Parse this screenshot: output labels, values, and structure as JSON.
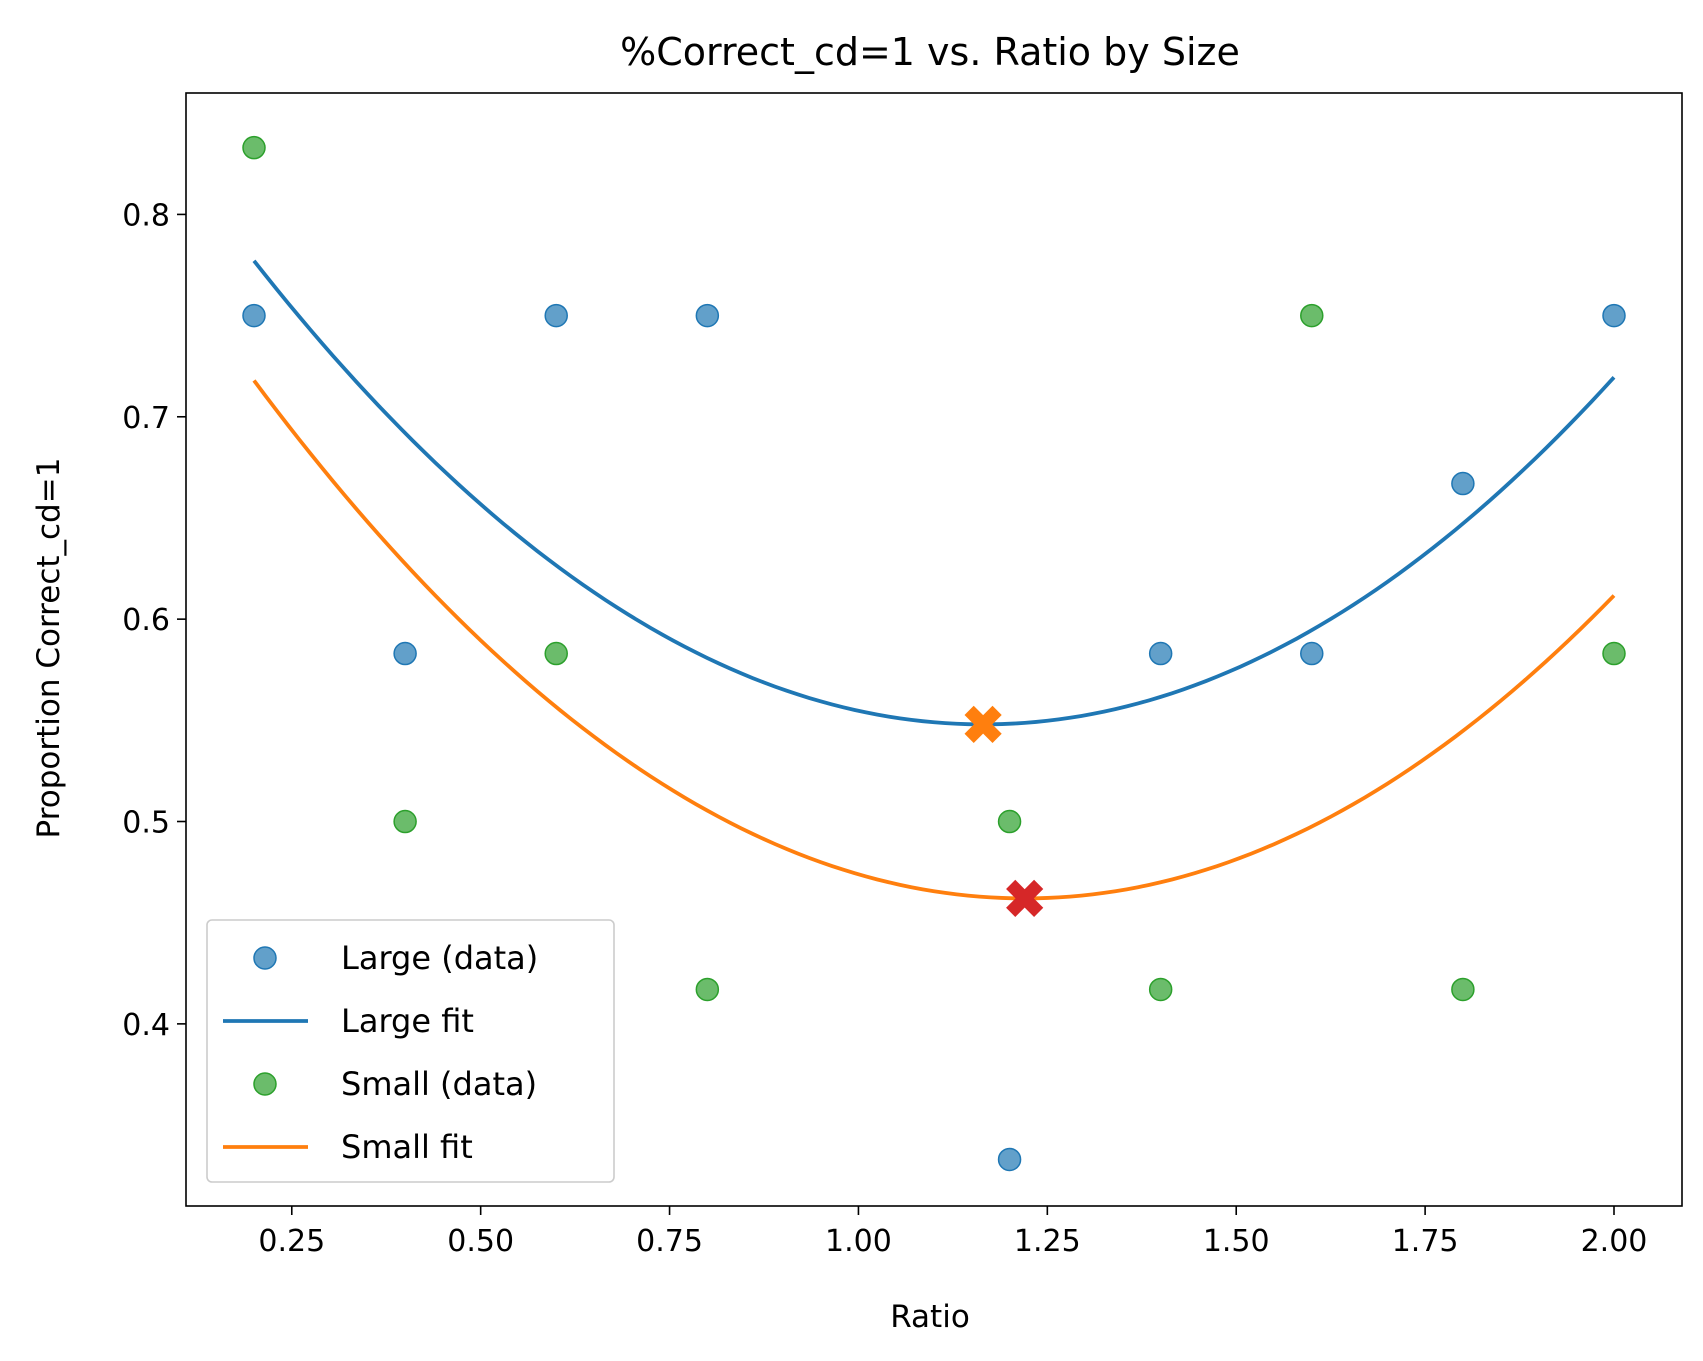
{
  "chart_data": {
    "type": "scatter",
    "title": "%Correct_cd=1 vs. Ratio by Size",
    "xlabel": "Ratio",
    "ylabel": "Proportion Correct_cd=1",
    "xlim": [
      0.11,
      2.09
    ],
    "ylim": [
      0.31,
      0.86
    ],
    "xticks": [
      0.25,
      0.5,
      0.75,
      1.0,
      1.25,
      1.5,
      1.75,
      2.0
    ],
    "xtick_labels": [
      "0.25",
      "0.50",
      "0.75",
      "1.00",
      "1.25",
      "1.50",
      "1.75",
      "2.00"
    ],
    "yticks": [
      0.4,
      0.5,
      0.6,
      0.7,
      0.8
    ],
    "ytick_labels": [
      "0.4",
      "0.5",
      "0.6",
      "0.7",
      "0.8"
    ],
    "grid": false,
    "legend_position": "lower-left",
    "series": [
      {
        "name": "Large (data)",
        "kind": "scatter",
        "color": "#1f77b4",
        "points": [
          [
            0.2,
            0.75
          ],
          [
            0.4,
            0.583
          ],
          [
            0.6,
            0.75
          ],
          [
            0.8,
            0.75
          ],
          [
            1.2,
            0.333
          ],
          [
            1.4,
            0.583
          ],
          [
            1.6,
            0.583
          ],
          [
            1.8,
            0.667
          ],
          [
            2.0,
            0.75
          ]
        ]
      },
      {
        "name": "Large fit",
        "kind": "line",
        "color": "#1f77b4",
        "quadratic": {
          "vertex_x": 1.165,
          "vertex_y": 0.548,
          "a": 0.246
        },
        "x_range": [
          0.2,
          2.0
        ]
      },
      {
        "name": "Small (data)",
        "kind": "scatter",
        "color": "#2ca02c",
        "points": [
          [
            0.2,
            0.833
          ],
          [
            0.4,
            0.5
          ],
          [
            0.6,
            0.583
          ],
          [
            0.8,
            0.417
          ],
          [
            1.2,
            0.5
          ],
          [
            1.4,
            0.417
          ],
          [
            1.6,
            0.75
          ],
          [
            1.8,
            0.417
          ],
          [
            2.0,
            0.583
          ]
        ]
      },
      {
        "name": "Small fit",
        "kind": "line",
        "color": "#ff7f0e",
        "quadratic": {
          "vertex_x": 1.22,
          "vertex_y": 0.462,
          "a": 0.246
        },
        "x_range": [
          0.2,
          2.0
        ]
      }
    ],
    "minimum_markers": [
      {
        "x": 1.165,
        "y": 0.548,
        "color": "#ff7f0e",
        "marker": "X"
      },
      {
        "x": 1.22,
        "y": 0.462,
        "color": "#d62728",
        "marker": "X"
      }
    ],
    "legend": [
      {
        "label": "Large (data)",
        "kind": "scatter",
        "color": "#1f77b4"
      },
      {
        "label": "Large fit",
        "kind": "line",
        "color": "#1f77b4"
      },
      {
        "label": "Small (data)",
        "kind": "scatter",
        "color": "#2ca02c"
      },
      {
        "label": "Small fit",
        "kind": "line",
        "color": "#ff7f0e"
      }
    ]
  }
}
